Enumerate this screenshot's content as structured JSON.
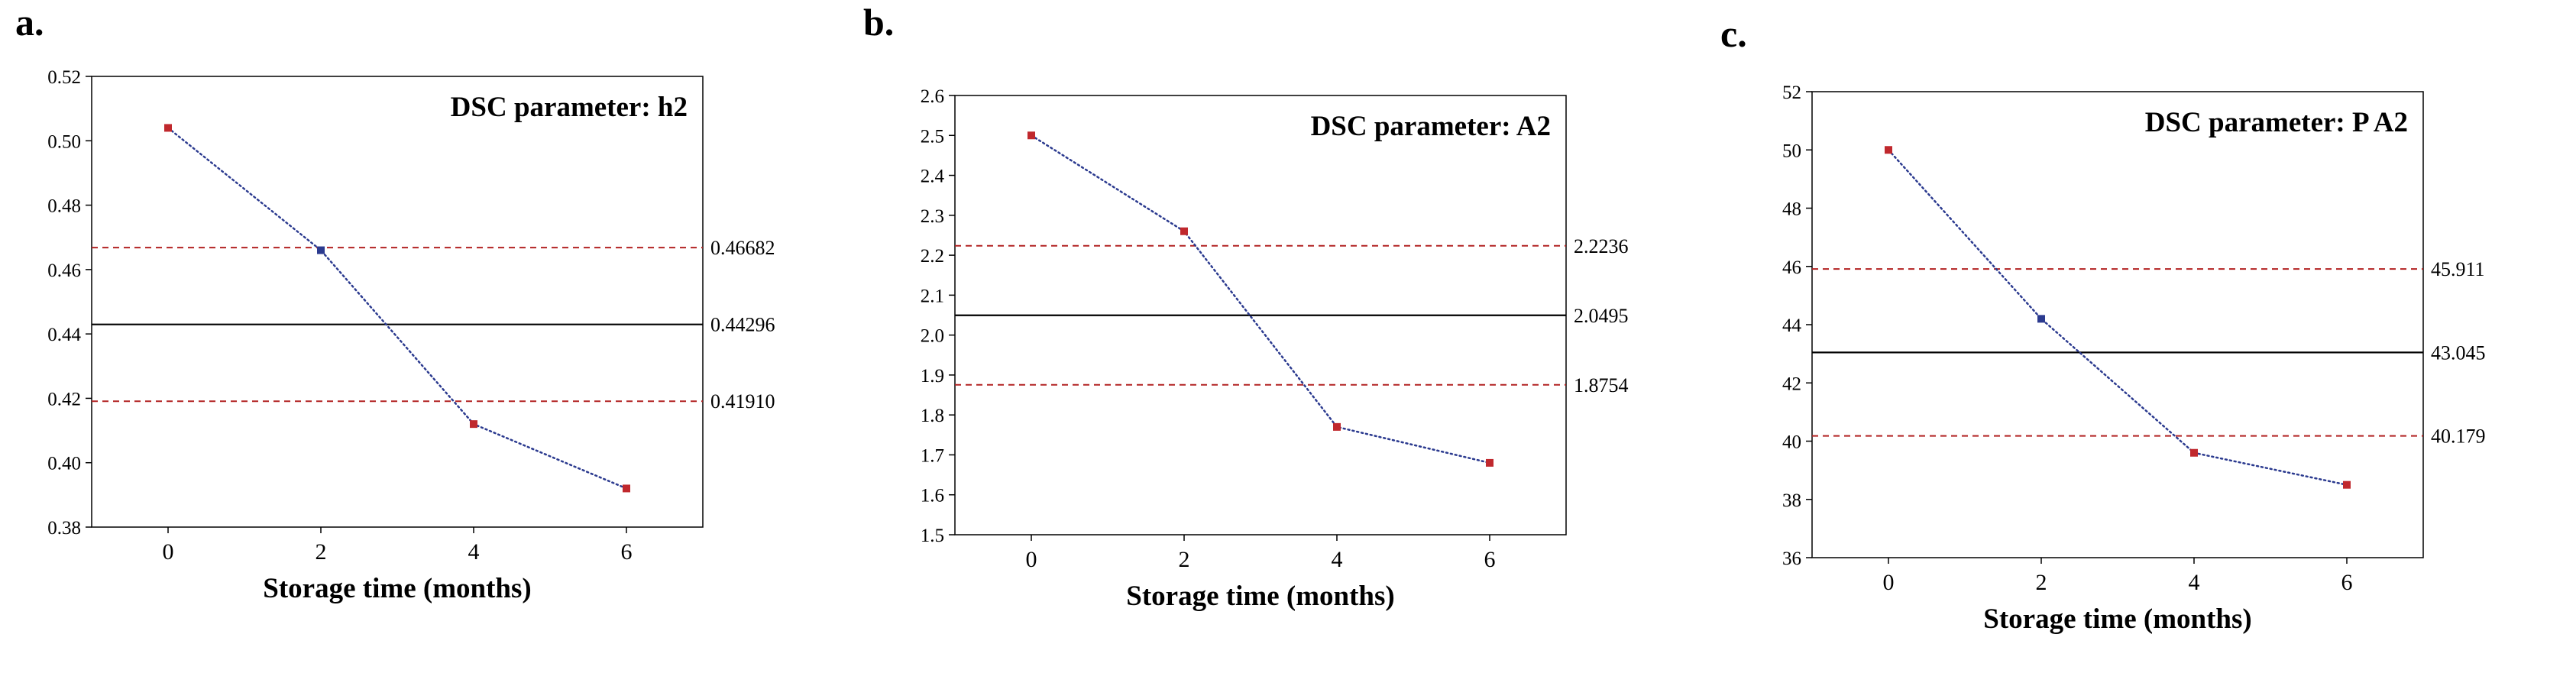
{
  "chart_data": [
    {
      "type": "line",
      "panel_label": "a.",
      "title": "DSC parameter: h2",
      "xlabel": "Storage time (months)",
      "ylabel": "",
      "x": [
        0,
        2,
        4,
        6
      ],
      "y": [
        0.504,
        0.466,
        0.412,
        0.392
      ],
      "point_colors": [
        "#c0282d",
        "#2b3a8f",
        "#c0282d",
        "#c0282d"
      ],
      "xlim": [
        -1,
        7
      ],
      "ylim": [
        0.38,
        0.52
      ],
      "xticks": [
        0,
        2,
        4,
        6
      ],
      "xtick_labels": [
        "0",
        "2",
        "4",
        "6"
      ],
      "yticks": [
        0.38,
        0.4,
        0.42,
        0.44,
        0.46,
        0.48,
        0.5,
        0.52
      ],
      "ytick_labels": [
        "0.38",
        "0.40",
        "0.42",
        "0.44",
        "0.46",
        "0.48",
        "0.50",
        "0.52"
      ],
      "reference_lines": [
        {
          "value": 0.46682,
          "label": "0.46682",
          "style": "dashed",
          "color": "#b22222"
        },
        {
          "value": 0.44296,
          "label": "0.44296",
          "style": "solid",
          "color": "#000000"
        },
        {
          "value": 0.4191,
          "label": "0.41910",
          "style": "dashed",
          "color": "#b22222"
        }
      ],
      "grid": false,
      "line_color": "#2b3a8f"
    },
    {
      "type": "line",
      "panel_label": "b.",
      "title": "DSC parameter: A2",
      "xlabel": "Storage time (months)",
      "ylabel": "",
      "x": [
        0,
        2,
        4,
        6
      ],
      "y": [
        2.5,
        2.26,
        1.77,
        1.68
      ],
      "point_colors": [
        "#c0282d",
        "#c0282d",
        "#c0282d",
        "#c0282d"
      ],
      "xlim": [
        -1,
        7
      ],
      "ylim": [
        1.5,
        2.6
      ],
      "xticks": [
        0,
        2,
        4,
        6
      ],
      "xtick_labels": [
        "0",
        "2",
        "4",
        "6"
      ],
      "yticks": [
        1.5,
        1.6,
        1.7,
        1.8,
        1.9,
        2.0,
        2.1,
        2.2,
        2.3,
        2.4,
        2.5,
        2.6
      ],
      "ytick_labels": [
        "1.5",
        "1.6",
        "1.7",
        "1.8",
        "1.9",
        "2.0",
        "2.1",
        "2.2",
        "2.3",
        "2.4",
        "2.5",
        "2.6"
      ],
      "reference_lines": [
        {
          "value": 2.2236,
          "label": "2.2236",
          "style": "dashed",
          "color": "#b22222"
        },
        {
          "value": 2.0495,
          "label": "2.0495",
          "style": "solid",
          "color": "#000000"
        },
        {
          "value": 1.8754,
          "label": "1.8754",
          "style": "dashed",
          "color": "#b22222"
        }
      ],
      "grid": false,
      "line_color": "#2b3a8f"
    },
    {
      "type": "line",
      "panel_label": "c.",
      "title": "DSC parameter: P A2",
      "xlabel": "Storage time (months)",
      "ylabel": "",
      "x": [
        0,
        2,
        4,
        6
      ],
      "y": [
        50.0,
        44.2,
        39.6,
        38.5
      ],
      "point_colors": [
        "#c0282d",
        "#2b3a8f",
        "#c0282d",
        "#c0282d"
      ],
      "xlim": [
        -1,
        7
      ],
      "ylim": [
        36,
        52
      ],
      "xticks": [
        0,
        2,
        4,
        6
      ],
      "xtick_labels": [
        "0",
        "2",
        "4",
        "6"
      ],
      "yticks": [
        36,
        38,
        40,
        42,
        44,
        46,
        48,
        50,
        52
      ],
      "ytick_labels": [
        "36",
        "38",
        "40",
        "42",
        "44",
        "46",
        "48",
        "50",
        "52"
      ],
      "reference_lines": [
        {
          "value": 45.911,
          "label": "45.911",
          "style": "dashed",
          "color": "#b22222"
        },
        {
          "value": 43.045,
          "label": "43.045",
          "style": "solid",
          "color": "#000000"
        },
        {
          "value": 40.179,
          "label": "40.179",
          "style": "dashed",
          "color": "#b22222"
        }
      ],
      "grid": false,
      "line_color": "#2b3a8f"
    }
  ]
}
